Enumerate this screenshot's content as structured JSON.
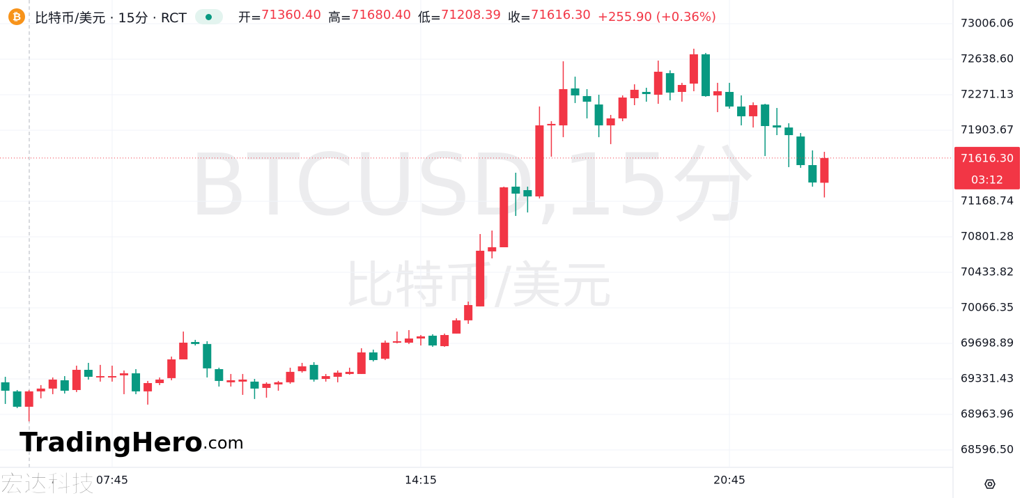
{
  "chart_data": {
    "type": "candlestick",
    "header": {
      "symbol": "比特币/美元 · 15分 · RCT",
      "fields": [
        {
          "key": "开=",
          "text": "71360.40"
        },
        {
          "key": "高=",
          "text": "71680.40"
        },
        {
          "key": "低=",
          "text": "71208.39"
        },
        {
          "key": "收=",
          "text": "71616.30"
        }
      ],
      "change": "+255.90 (+0.36%)"
    },
    "watermark": "BTCUSD,15分",
    "watermark_sub": "比特币/美元",
    "logo": {
      "brand": "TradingHero",
      "suffix": ".com"
    },
    "corner_mark": "宏达科技",
    "last_price_label": "71616.30",
    "countdown": "03:12",
    "up_color": "#f23645",
    "down_color": "#089981",
    "grid": true,
    "ylim": [
      68416,
      73251
    ],
    "yticks": [
      {
        "value": 68596.5,
        "label": "68596.50"
      },
      68963.96,
      69331.43,
      69698.89,
      70066.35,
      70433.82,
      70801.28,
      71168.74,
      71903.67,
      72271.13,
      {
        "value": 72638.6,
        "label": "72638.60"
      },
      73006.06
    ],
    "categories": [
      null,
      null,
      null,
      null,
      null,
      null,
      null,
      null,
      null,
      "07:45",
      null,
      null,
      null,
      null,
      null,
      null,
      null,
      null,
      null,
      null,
      null,
      null,
      null,
      null,
      null,
      null,
      null,
      null,
      null,
      null,
      null,
      null,
      null,
      null,
      null,
      "14:15",
      null,
      null,
      null,
      null,
      null,
      null,
      null,
      null,
      null,
      null,
      null,
      null,
      null,
      null,
      null,
      null,
      null,
      null,
      null,
      null,
      null,
      null,
      null,
      null,
      null,
      "20:45",
      null,
      null,
      null,
      null,
      null,
      null,
      null,
      null
    ],
    "open": [
      69296,
      69202,
      69043,
      69202,
      69231,
      69317,
      69216,
      69425,
      69346,
      69346,
      69368,
      69389,
      69202,
      69288,
      69339,
      69533,
      69713,
      69692,
      69432,
      69296,
      69303,
      69303,
      69238,
      69274,
      69296,
      69411,
      69476,
      69331,
      69353,
      69382,
      69382,
      69605,
      69540,
      69706,
      69706,
      69749,
      69778,
      69670,
      69800,
      69937,
      70081,
      70650,
      70693,
      71320,
      71284,
      71219,
      71954,
      71954,
      72336,
      72257,
      72170,
      71954,
      72026,
      72235,
      72300,
      72271,
      72494,
      72300,
      72386,
      72689,
      72264,
      72300,
      72149,
      72048,
      72170,
      71954,
      71932,
      71839,
      71543,
      71360.4
    ],
    "high": [
      69353,
      69216,
      69216,
      69267,
      69346,
      69360,
      69468,
      69497,
      69476,
      69468,
      69418,
      69432,
      69310,
      69346,
      69562,
      69821,
      69735,
      69721,
      69447,
      69382,
      69382,
      69331,
      69296,
      69310,
      69447,
      69497,
      69504,
      69382,
      69418,
      69447,
      69648,
      69634,
      69728,
      69821,
      69836,
      69785,
      69793,
      69800,
      69958,
      70131,
      70830,
      70866,
      71320,
      71464,
      71320,
      72149,
      71997,
      72617,
      72458,
      72329,
      72271,
      72062,
      72264,
      72379,
      72343,
      72624,
      72523,
      72394,
      72747,
      72703,
      72394,
      72394,
      72264,
      72192,
      72177,
      72134,
      71976,
      71875,
      71695,
      71680.4
    ],
    "low": [
      69072,
      69029,
      68892,
      69130,
      69173,
      69180,
      69195,
      69324,
      69303,
      69303,
      69173,
      69173,
      69065,
      69267,
      69317,
      69533,
      69677,
      69346,
      69252,
      69252,
      69166,
      69123,
      69137,
      69209,
      69281,
      69396,
      69303,
      69303,
      69296,
      69375,
      69382,
      69512,
      69526,
      69699,
      69692,
      69677,
      69663,
      69663,
      69800,
      69901,
      70081,
      70578,
      70693,
      71017,
      71053,
      71198,
      71630,
      71832,
      72185,
      72026,
      71832,
      71760,
      71997,
      72163,
      72199,
      72177,
      72213,
      72199,
      72307,
      72250,
      72091,
      72127,
      71954,
      71932,
      71637,
      71853,
      71522,
      71515,
      71320,
      71208.39
    ],
    "close": [
      69209,
      69043,
      69202,
      69231,
      69324,
      69209,
      69425,
      69353,
      69360,
      69360,
      69389,
      69202,
      69288,
      69324,
      69533,
      69706,
      69692,
      69440,
      69310,
      69317,
      69324,
      69231,
      69281,
      69296,
      69404,
      69461,
      69324,
      69360,
      69396,
      69404,
      69605,
      69526,
      69706,
      69721,
      69749,
      69771,
      69677,
      69785,
      69937,
      70095,
      70657,
      70693,
      71313,
      71248,
      71219,
      71954,
      71969,
      72329,
      72264,
      72199,
      71954,
      72026,
      72242,
      72322,
      72278,
      72509,
      72293,
      72372,
      72689,
      72257,
      72307,
      72149,
      72048,
      72163,
      71947,
      71932,
      71853,
      71543,
      71363,
      71616.3
    ]
  }
}
